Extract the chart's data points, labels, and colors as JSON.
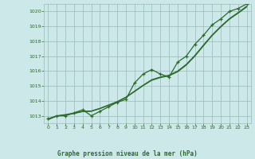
{
  "title": "",
  "xlabel": "Graphe pression niveau de la mer (hPa)",
  "x_values": [
    0,
    1,
    2,
    3,
    4,
    5,
    6,
    7,
    8,
    9,
    10,
    11,
    12,
    13,
    14,
    15,
    16,
    17,
    18,
    19,
    20,
    21,
    22,
    23
  ],
  "y_main": [
    1012.8,
    1013.0,
    1013.0,
    1013.2,
    1013.4,
    1013.0,
    1013.3,
    1013.6,
    1013.9,
    1014.1,
    1015.2,
    1015.8,
    1016.1,
    1015.8,
    1015.6,
    1016.6,
    1017.0,
    1017.8,
    1018.4,
    1019.1,
    1019.5,
    1020.0,
    1020.2,
    1020.5
  ],
  "y_smooth1": [
    1012.75,
    1013.0,
    1013.08,
    1013.18,
    1013.3,
    1013.32,
    1013.5,
    1013.72,
    1013.95,
    1014.25,
    1014.65,
    1015.05,
    1015.42,
    1015.6,
    1015.72,
    1016.0,
    1016.45,
    1017.05,
    1017.75,
    1018.42,
    1019.0,
    1019.52,
    1019.92,
    1020.35
  ],
  "y_smooth2": [
    1012.75,
    1012.98,
    1013.05,
    1013.15,
    1013.28,
    1013.3,
    1013.48,
    1013.7,
    1013.93,
    1014.22,
    1014.62,
    1015.02,
    1015.38,
    1015.56,
    1015.68,
    1015.95,
    1016.4,
    1017.0,
    1017.7,
    1018.38,
    1018.96,
    1019.48,
    1019.88,
    1020.3
  ],
  "line_color": "#2d6a2d",
  "bg_color": "#cce8e8",
  "grid_color": "#99bbbb",
  "tick_label_color": "#2d6a2d",
  "xlabel_color": "#2d6a2d",
  "ylim": [
    1012.5,
    1020.5
  ],
  "yticks": [
    1013,
    1014,
    1015,
    1016,
    1017,
    1018,
    1019,
    1020
  ],
  "xlim": [
    -0.5,
    23.5
  ],
  "xticks": [
    0,
    1,
    2,
    3,
    4,
    5,
    6,
    7,
    8,
    9,
    10,
    11,
    12,
    13,
    14,
    15,
    16,
    17,
    18,
    19,
    20,
    21,
    22,
    23
  ]
}
